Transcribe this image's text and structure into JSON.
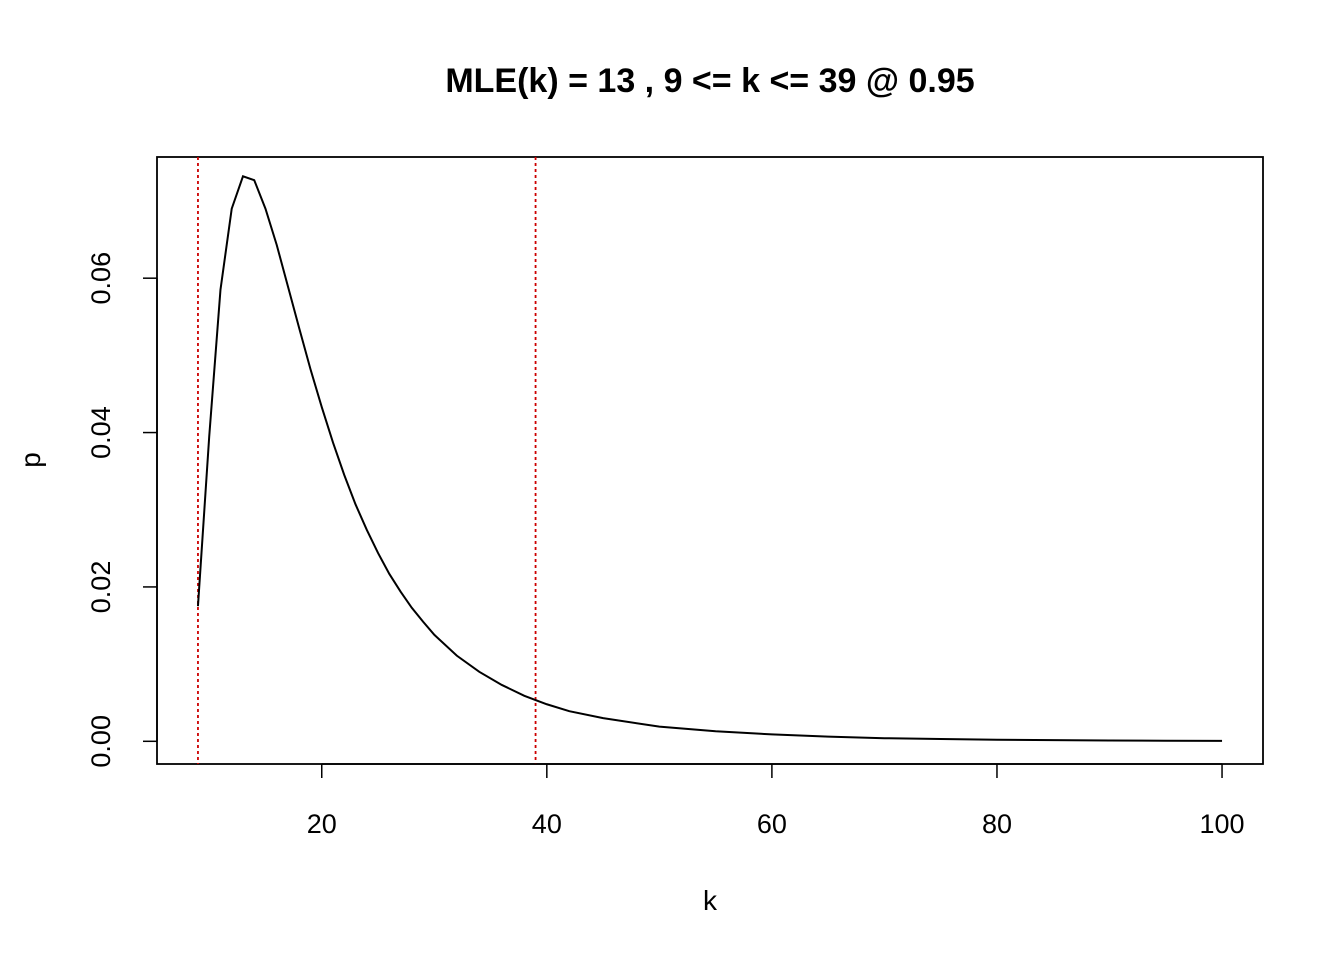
{
  "chart_data": {
    "type": "line",
    "title": "MLE(k) = 13 , 9 <= k <= 39  @ 0.95",
    "xlabel": "k",
    "ylabel": "p",
    "xlim": [
      5.36,
      103.64
    ],
    "ylim": [
      -0.00294,
      0.0757
    ],
    "x_ticks": [
      20,
      40,
      60,
      80,
      100
    ],
    "x_tick_labels": [
      "20",
      "40",
      "60",
      "80",
      "100"
    ],
    "y_ticks": [
      0.0,
      0.02,
      0.04,
      0.06
    ],
    "y_tick_labels": [
      "0.00",
      "0.02",
      "0.04",
      "0.06"
    ],
    "grid": false,
    "series": [
      {
        "color": "#000000",
        "x": [
          9,
          10,
          11,
          12,
          13,
          14,
          15,
          16,
          17,
          18,
          19,
          20,
          21,
          22,
          23,
          24,
          25,
          26,
          27,
          28,
          29,
          30,
          32,
          34,
          36,
          38,
          40,
          42,
          45,
          50,
          55,
          60,
          65,
          70,
          75,
          80,
          85,
          90,
          95,
          100
        ],
        "y": [
          0.0175,
          0.0395,
          0.0585,
          0.069,
          0.0732,
          0.0727,
          0.069,
          0.0643,
          0.0589,
          0.0535,
          0.0482,
          0.0433,
          0.0387,
          0.0345,
          0.0307,
          0.0274,
          0.0244,
          0.0217,
          0.0194,
          0.0173,
          0.0155,
          0.0138,
          0.0111,
          0.009,
          0.0073,
          0.0059,
          0.0048,
          0.0039,
          0.003,
          0.0019,
          0.0013,
          0.0009,
          0.0006,
          0.0004,
          0.0003,
          0.0002,
          0.00015,
          0.0001,
          7e-05,
          5e-05
        ]
      }
    ],
    "vlines": [
      {
        "x": 9,
        "color": "#cc0000",
        "style": "dotted"
      },
      {
        "x": 39,
        "color": "#cc0000",
        "style": "dotted"
      }
    ]
  }
}
